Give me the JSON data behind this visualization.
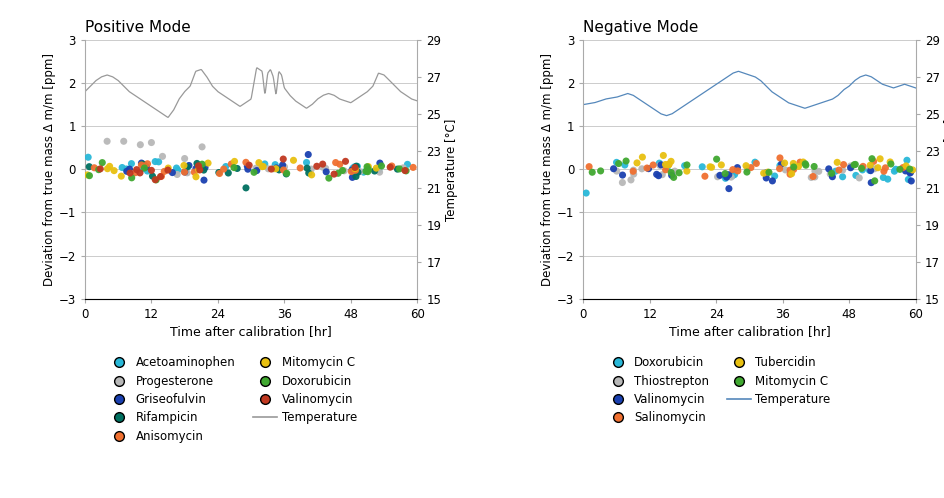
{
  "pos_title": "Positive Mode",
  "neg_title": "Negative Mode",
  "ylabel": "Deviation from true mass Δ m/m [ppm]",
  "xlabel": "Time after calibration [hr]",
  "right_ylabel": "Temperature [°C]",
  "ylim": [
    -3,
    3
  ],
  "xlim": [
    0,
    60
  ],
  "temp_ylim": [
    15,
    29
  ],
  "yticks": [
    -3,
    -2,
    -1,
    0,
    1,
    2,
    3
  ],
  "xticks": [
    0,
    12,
    24,
    36,
    48,
    60
  ],
  "right_yticks": [
    15,
    17,
    19,
    21,
    23,
    25,
    27,
    29
  ],
  "pos_legend": [
    {
      "label": "Acetoaminophen",
      "color": "#29b8d8"
    },
    {
      "label": "Progesterone",
      "color": "#b8b8b8"
    },
    {
      "label": "Griseofulvin",
      "color": "#1a40b0"
    },
    {
      "label": "Rifampicin",
      "color": "#007060"
    },
    {
      "label": "Anisomycin",
      "color": "#f07030"
    },
    {
      "label": "Mitomycin C",
      "color": "#e8c010"
    },
    {
      "label": "Doxorubicin",
      "color": "#40a830"
    },
    {
      "label": "Valinomycin",
      "color": "#c03820"
    }
  ],
  "neg_legend": [
    {
      "label": "Doxorubicin",
      "color": "#29b8d8"
    },
    {
      "label": "Thiostrepton",
      "color": "#b8b8b8"
    },
    {
      "label": "Valinomycin",
      "color": "#1a40b0"
    },
    {
      "label": "Salinomycin",
      "color": "#f07030"
    },
    {
      "label": "Tubercidin",
      "color": "#e8c010"
    },
    {
      "label": "Mitomycin C",
      "color": "#40a830"
    }
  ],
  "temp_color_pos": "#999999",
  "temp_color_neg": "#5588bb",
  "background_color": "#ffffff",
  "grid_color": "#cccccc"
}
